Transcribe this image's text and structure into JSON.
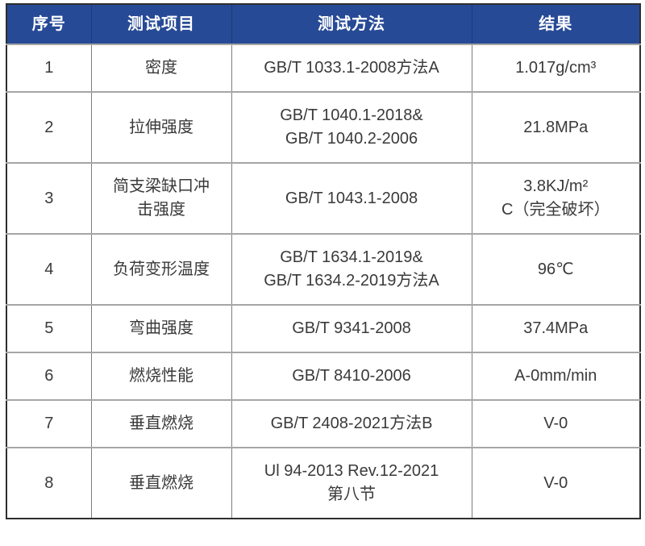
{
  "table": {
    "headers": [
      "序号",
      "测试项目",
      "测试方法",
      "结果"
    ],
    "rows": [
      {
        "index": "1",
        "item": "密度",
        "method": "GB/T 1033.1-2008方法A",
        "result": "1.017g/cm³"
      },
      {
        "index": "2",
        "item": "拉伸强度",
        "method": "GB/T 1040.1-2018&\nGB/T 1040.2-2006",
        "result": "21.8MPa"
      },
      {
        "index": "3",
        "item": "简支梁缺口冲击强度",
        "method": "GB/T 1043.1-2008",
        "result": "3.8KJ/m²\nC（完全破坏）"
      },
      {
        "index": "4",
        "item": "负荷变形温度",
        "method": "GB/T 1634.1-2019&\nGB/T 1634.2-2019方法A",
        "result": "96℃"
      },
      {
        "index": "5",
        "item": "弯曲强度",
        "method": "GB/T 9341-2008",
        "result": "37.4MPa"
      },
      {
        "index": "6",
        "item": "燃烧性能",
        "method": "GB/T 8410-2006",
        "result": "A-0mm/min"
      },
      {
        "index": "7",
        "item": "垂直燃烧",
        "method": "GB/T 2408-2021方法B",
        "result": "V-0"
      },
      {
        "index": "8",
        "item": "垂直燃烧",
        "method": "Ul 94-2013 Rev.12-2021\n第八节",
        "result": "V-0"
      }
    ]
  },
  "colors": {
    "header_bg": "#274a96",
    "header_text": "#ffffff",
    "header_divider": "#1c3a7e",
    "body_text": "#3a3a3a",
    "outer_border": "#2e2e2e",
    "row_line": "#a6a6a6",
    "col_line": "#7d7d7d",
    "page_bg": "#ffffff"
  }
}
